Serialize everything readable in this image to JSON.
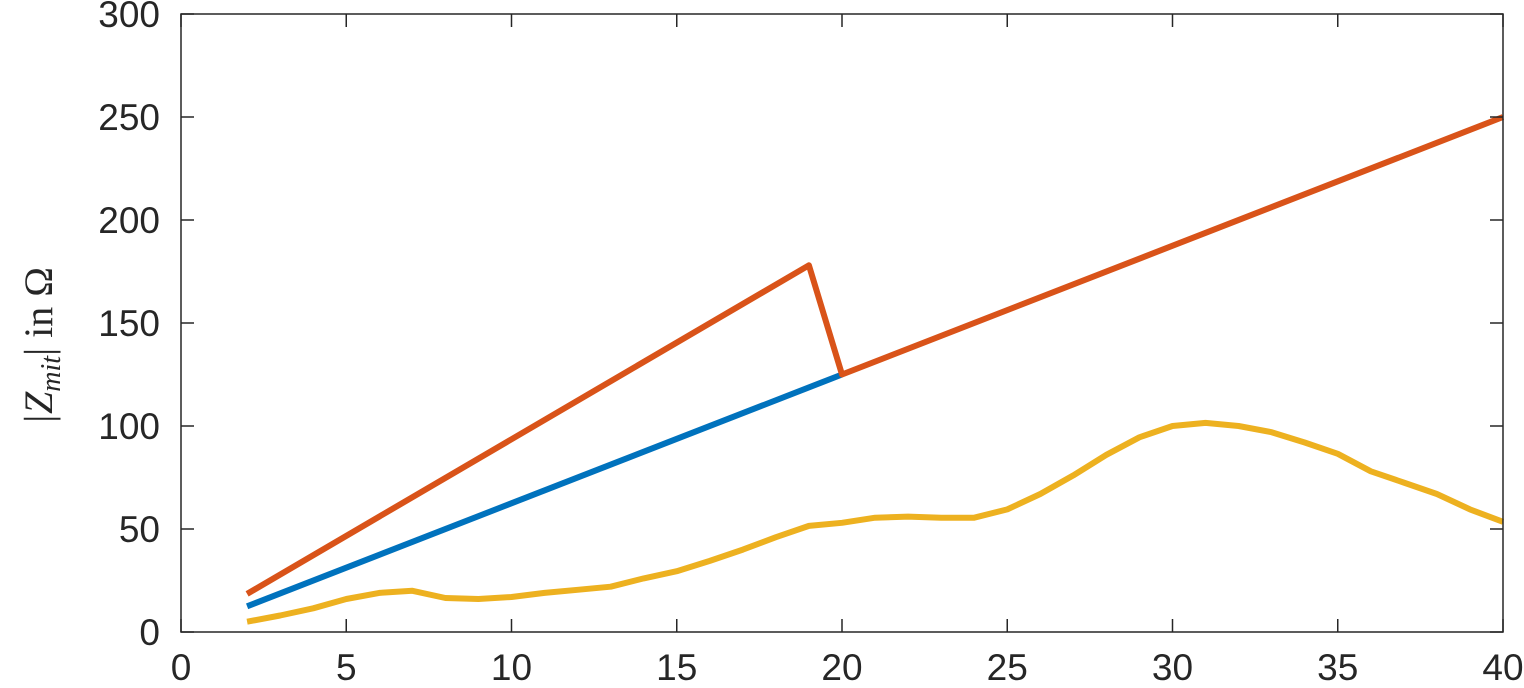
{
  "chart_data": {
    "type": "line",
    "title": "",
    "xlabel": "",
    "ylabel": {
      "prefix": "|Z",
      "subscript": "mit",
      "suffix": "| in Ω"
    },
    "xlim": [
      0,
      40
    ],
    "ylim": [
      0,
      300
    ],
    "xticks": [
      0,
      5,
      10,
      15,
      20,
      25,
      30,
      35,
      40
    ],
    "yticks": [
      0,
      50,
      100,
      150,
      200,
      250,
      300
    ],
    "xtick_labels": [
      "0",
      "5",
      "10",
      "15",
      "20",
      "25",
      "30",
      "35",
      "40"
    ],
    "ytick_labels": [
      "0",
      "50",
      "100",
      "150",
      "200",
      "250",
      "300"
    ],
    "grid": false,
    "series": [
      {
        "color": "#0072bd",
        "x": [
          2,
          20
        ],
        "y": [
          12.5,
          125
        ]
      },
      {
        "color": "#d95319",
        "x": [
          2,
          19,
          20,
          40
        ],
        "y": [
          18.5,
          178,
          125,
          250
        ]
      },
      {
        "color": "#edb120",
        "x": [
          2,
          3,
          4,
          5,
          6,
          7,
          8,
          9,
          10,
          11,
          12,
          13,
          14,
          15,
          16,
          17,
          18,
          19,
          20,
          21,
          22,
          23,
          24,
          25,
          26,
          27,
          28,
          29,
          30,
          31,
          32,
          33,
          34,
          35,
          36,
          37,
          38,
          39,
          40
        ],
        "y": [
          5,
          8,
          11.5,
          16,
          19,
          20,
          16.5,
          16,
          17,
          19,
          20.5,
          22,
          26,
          29.5,
          34.5,
          40,
          46,
          51.5,
          53,
          55.5,
          56,
          55.5,
          55.5,
          59.5,
          67,
          76,
          86,
          94.5,
          100,
          101.5,
          100,
          97,
          92,
          86.5,
          78,
          72.5,
          67,
          59.5,
          53.5
        ]
      }
    ]
  }
}
